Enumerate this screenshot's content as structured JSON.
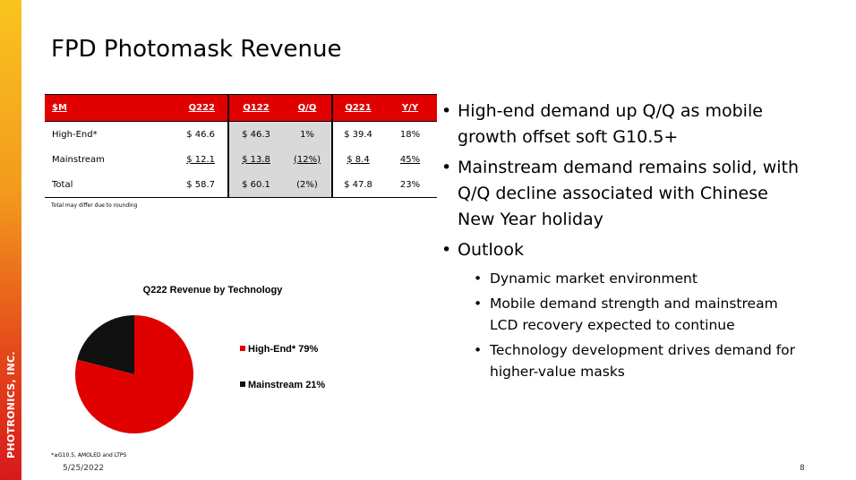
{
  "sidebar": {
    "company": "PHOTRONICS, INC."
  },
  "slide": {
    "title": "FPD Photomask Revenue",
    "date": "5/25/2022",
    "page_number": "8"
  },
  "table": {
    "headers": [
      "$M",
      "Q222",
      "Q122",
      "Q/Q",
      "Q221",
      "Y/Y"
    ],
    "rows": [
      [
        "High-End*",
        "$ 46.6",
        "$ 46.3",
        "1%",
        "$ 39.4",
        "18%"
      ],
      [
        "Mainstream",
        "$ 12.1",
        "$ 13.8",
        "(12%)",
        "$ 8.4",
        "45%"
      ],
      [
        "Total",
        "$ 58.7",
        "$ 60.1",
        "(2%)",
        "$ 47.8",
        "23%"
      ]
    ],
    "note": "Total may differ due to rounding"
  },
  "chart_data": {
    "type": "pie",
    "title": "Q222 Revenue by Technology",
    "labels": [
      "High-End*",
      "Mainstream"
    ],
    "values": [
      79,
      21
    ],
    "legend_labels": [
      "High-End* 79%",
      "Mainstream 21%"
    ],
    "colors": [
      "#e00000",
      "#111111"
    ],
    "legend_position": "right"
  },
  "footnote": "*≥G10.5, AMOLED and LTPS",
  "bullets": [
    {
      "level": 1,
      "text": "High-end demand up Q/Q as mobile growth offset soft G10.5+"
    },
    {
      "level": 1,
      "text": "Mainstream demand remains solid, with Q/Q decline associated with Chinese New Year holiday"
    },
    {
      "level": 1,
      "text": "Outlook"
    },
    {
      "level": 2,
      "text": "Dynamic market environment"
    },
    {
      "level": 2,
      "text": "Mobile demand strength and mainstream LCD recovery expected to continue"
    },
    {
      "level": 2,
      "text": "Technology development drives demand for higher-value masks"
    }
  ],
  "bullet_glyph": "•"
}
